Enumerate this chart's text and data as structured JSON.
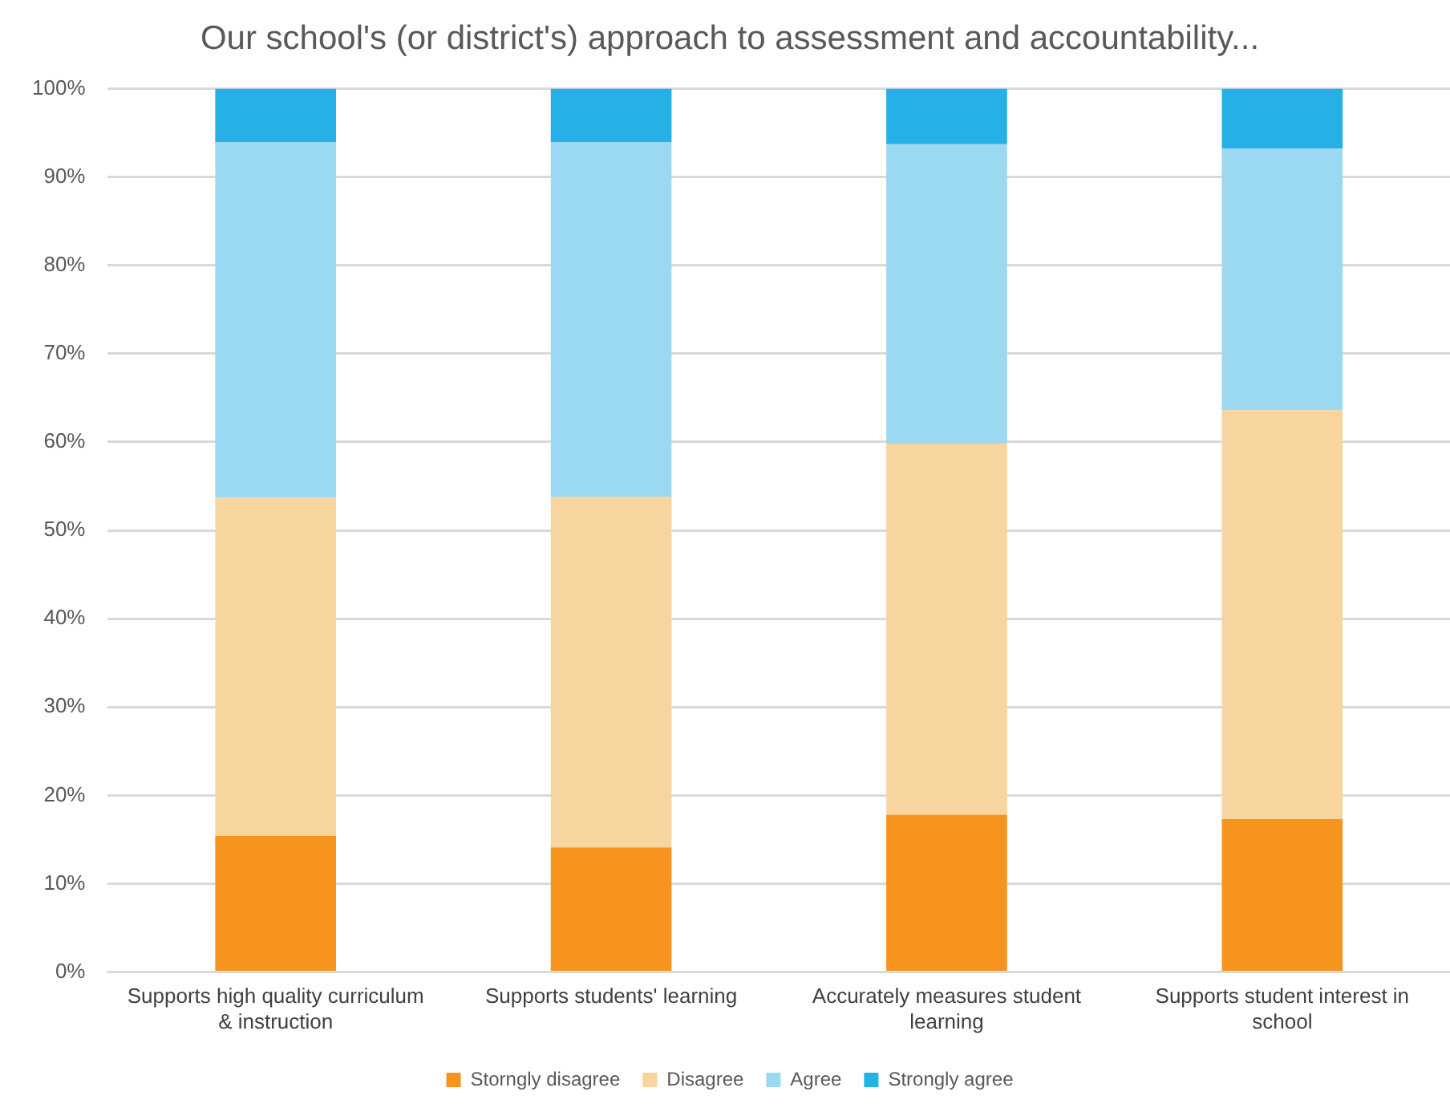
{
  "chart_data": {
    "type": "bar",
    "title": "Our school's (or district's) approach to assessment and accountability...",
    "categories": [
      "Supports high quality curriculum & instruction",
      "Supports students' learning",
      "Accurately measures student learning",
      "Supports student interest in school"
    ],
    "series": [
      {
        "name": "Storngly disagree",
        "color": "#f7941d",
        "values": [
          15.4,
          14.1,
          17.8,
          17.3
        ]
      },
      {
        "name": "Disagree",
        "color": "#f8d49e",
        "values": [
          38.3,
          39.7,
          42.0,
          46.3
        ]
      },
      {
        "name": "Agree",
        "color": "#9bd8f1",
        "values": [
          40.2,
          40.1,
          33.9,
          29.6
        ]
      },
      {
        "name": "Strongly agree",
        "color": "#25b1e6",
        "values": [
          6.1,
          6.1,
          6.3,
          6.8
        ]
      }
    ],
    "stacked": true,
    "ylim": [
      0,
      100
    ],
    "yticks": [
      {
        "value": 0,
        "label": "0%"
      },
      {
        "value": 10,
        "label": "10%"
      },
      {
        "value": 20,
        "label": "20%"
      },
      {
        "value": 30,
        "label": "30%"
      },
      {
        "value": 40,
        "label": "40%"
      },
      {
        "value": 50,
        "label": "50%"
      },
      {
        "value": 60,
        "label": "60%"
      },
      {
        "value": 70,
        "label": "70%"
      },
      {
        "value": 80,
        "label": "80%"
      },
      {
        "value": 90,
        "label": "90%"
      },
      {
        "value": 100,
        "label": "100%"
      }
    ],
    "grid": "y",
    "legend": "bottom"
  }
}
